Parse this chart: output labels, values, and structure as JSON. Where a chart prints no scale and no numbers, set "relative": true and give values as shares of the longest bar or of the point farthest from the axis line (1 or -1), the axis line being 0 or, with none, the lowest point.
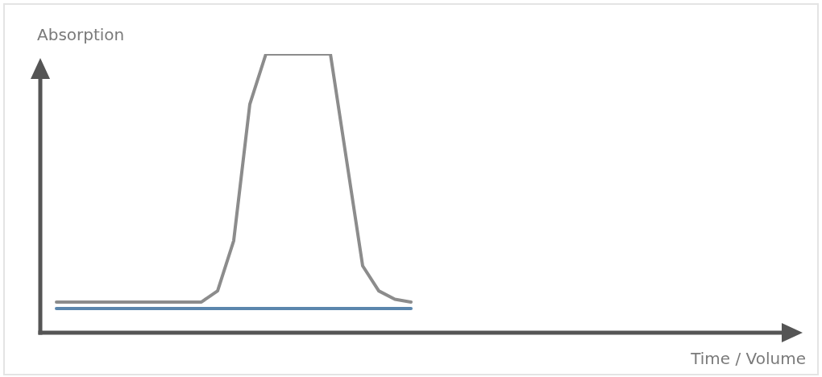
{
  "chart_data": {
    "type": "line",
    "xlabel": "Time / Volume",
    "ylabel": "Absorption",
    "relative": true,
    "tick_labels": false,
    "legend": false,
    "marker": "none",
    "line_style": "solid",
    "categories": [
      null,
      null,
      null,
      null,
      null,
      null,
      null,
      null,
      null,
      null,
      null,
      null,
      null,
      null,
      null,
      null,
      null,
      null,
      null,
      null,
      null,
      null,
      null,
      null,
      null,
      null,
      null,
      null,
      null,
      null,
      null,
      null,
      null,
      null,
      null,
      null,
      null,
      null,
      null,
      null,
      null,
      null,
      null,
      null,
      null,
      null,
      null
    ],
    "series": [
      {
        "color": "#8c8c8c",
        "values": [
          0.11,
          0.11,
          0.11,
          0.11,
          0.11,
          0.11,
          0.11,
          0.11,
          0.11,
          0.11,
          0.15,
          0.33,
          0.82,
          1,
          1,
          1,
          1,
          1,
          0.62,
          0.24,
          0.15,
          0.12,
          0.11,
          null,
          null,
          null,
          null,
          null,
          null,
          null,
          null,
          null,
          null,
          null,
          null,
          null,
          null,
          null,
          null,
          null,
          null,
          null,
          null,
          null,
          null,
          null,
          null
        ]
      },
      {
        "color": "#5b86ad",
        "values": [
          0.087,
          0.087,
          0.087,
          0.087,
          0.087,
          0.087,
          0.087,
          0.087,
          0.087,
          0.087,
          0.087,
          0.087,
          0.087,
          0.087,
          0.087,
          0.087,
          0.087,
          0.087,
          0.087,
          0.087,
          0.087,
          0.087,
          0.087,
          null,
          null,
          null,
          null,
          null,
          null,
          null,
          null,
          null,
          null,
          null,
          null,
          null,
          null,
          null,
          null,
          null,
          null,
          null,
          null,
          null,
          null,
          null,
          null
        ]
      }
    ]
  }
}
